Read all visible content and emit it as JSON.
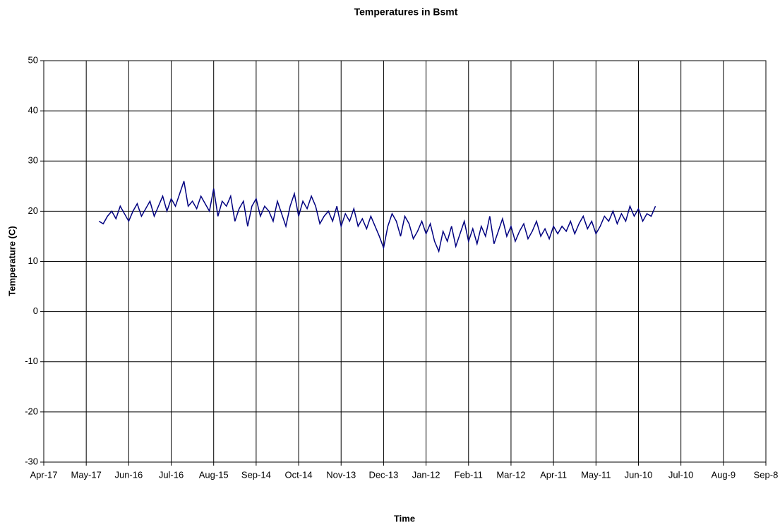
{
  "chart_data": {
    "type": "line",
    "title": "Temperatures in Bsmt",
    "xlabel": "Time",
    "ylabel": "Temperature (C)",
    "x": [
      1.3,
      1.4,
      1.5,
      1.6,
      1.7,
      1.8,
      1.9,
      2.0,
      2.1,
      2.2,
      2.3,
      2.4,
      2.5,
      2.6,
      2.7,
      2.8,
      2.9,
      3.0,
      3.1,
      3.2,
      3.3,
      3.4,
      3.5,
      3.6,
      3.7,
      3.8,
      3.9,
      4.0,
      4.1,
      4.2,
      4.3,
      4.4,
      4.5,
      4.6,
      4.7,
      4.8,
      4.9,
      5.0,
      5.1,
      5.2,
      5.3,
      5.4,
      5.5,
      5.6,
      5.7,
      5.8,
      5.9,
      6.0,
      6.1,
      6.2,
      6.3,
      6.4,
      6.5,
      6.6,
      6.7,
      6.8,
      6.9,
      7.0,
      7.1,
      7.2,
      7.3,
      7.4,
      7.5,
      7.6,
      7.7,
      7.8,
      7.9,
      8.0,
      8.1,
      8.2,
      8.3,
      8.4,
      8.5,
      8.6,
      8.7,
      8.8,
      8.9,
      9.0,
      9.1,
      9.2,
      9.3,
      9.4,
      9.5,
      9.6,
      9.7,
      9.8,
      9.9,
      10.0,
      10.1,
      10.2,
      10.3,
      10.4,
      10.5,
      10.6,
      10.7,
      10.8,
      10.9,
      11.0,
      11.1,
      11.2,
      11.3,
      11.4,
      11.5,
      11.6,
      11.7,
      11.8,
      11.9,
      12.0,
      12.1,
      12.2,
      12.3,
      12.4,
      12.5,
      12.6,
      12.7,
      12.8,
      12.9,
      13.0,
      13.1,
      13.2,
      13.3,
      13.4,
      13.5,
      13.6,
      13.7,
      13.8,
      13.9,
      14.0,
      14.1,
      14.2,
      14.3,
      14.4
    ],
    "series": [
      {
        "name": "Bsmt",
        "color": "#000080",
        "values": [
          18,
          17.5,
          19,
          20,
          18.5,
          21,
          19.5,
          18,
          20,
          21.5,
          19,
          20.5,
          22,
          19,
          21,
          23,
          20,
          22.5,
          21,
          23.5,
          26,
          21,
          22,
          20.5,
          23,
          21.5,
          20,
          24.5,
          19,
          22,
          21,
          23,
          18,
          20.5,
          22,
          17,
          21,
          22.5,
          19,
          21,
          20,
          18,
          22,
          19.5,
          17,
          21,
          23.5,
          19,
          22,
          20.5,
          23,
          21,
          17.5,
          19,
          20,
          18,
          21,
          17,
          19.5,
          18,
          20.5,
          17,
          18.5,
          16.5,
          19,
          17,
          15,
          12.7,
          17,
          19.5,
          18,
          15,
          19,
          17.5,
          14.5,
          16,
          18,
          15.5,
          17.5,
          14,
          12,
          16,
          14,
          17,
          13,
          15.5,
          18,
          14,
          16.5,
          13.5,
          17,
          15,
          19,
          13.5,
          16,
          18.5,
          15,
          17,
          14,
          16,
          17.5,
          14.5,
          16,
          18,
          15,
          16.5,
          14.5,
          17,
          15.5,
          17,
          16,
          18,
          15.5,
          17.5,
          19,
          16.5,
          18,
          15.5,
          17,
          19,
          18,
          20,
          17.5,
          19.5,
          18,
          21,
          19,
          20.5,
          18,
          19.5,
          19,
          21
        ]
      }
    ],
    "xlim": [
      0,
      17
    ],
    "xticks": [
      {
        "value": 0,
        "label": "Apr-17"
      },
      {
        "value": 1,
        "label": "May-17"
      },
      {
        "value": 2,
        "label": "Jun-16"
      },
      {
        "value": 3,
        "label": "Jul-16"
      },
      {
        "value": 4,
        "label": "Aug-15"
      },
      {
        "value": 5,
        "label": "Sep-14"
      },
      {
        "value": 6,
        "label": "Oct-14"
      },
      {
        "value": 7,
        "label": "Nov-13"
      },
      {
        "value": 8,
        "label": "Dec-13"
      },
      {
        "value": 9,
        "label": "Jan-12"
      },
      {
        "value": 10,
        "label": "Feb-11"
      },
      {
        "value": 11,
        "label": "Mar-12"
      },
      {
        "value": 12,
        "label": "Apr-11"
      },
      {
        "value": 13,
        "label": "May-11"
      },
      {
        "value": 14,
        "label": "Jun-10"
      },
      {
        "value": 15,
        "label": "Jul-10"
      },
      {
        "value": 16,
        "label": "Aug-9"
      },
      {
        "value": 17,
        "label": "Sep-8"
      }
    ],
    "ylim": [
      -30,
      50
    ],
    "yticks": [
      -30,
      -20,
      -10,
      0,
      10,
      20,
      30,
      40,
      50
    ],
    "grid": true
  }
}
